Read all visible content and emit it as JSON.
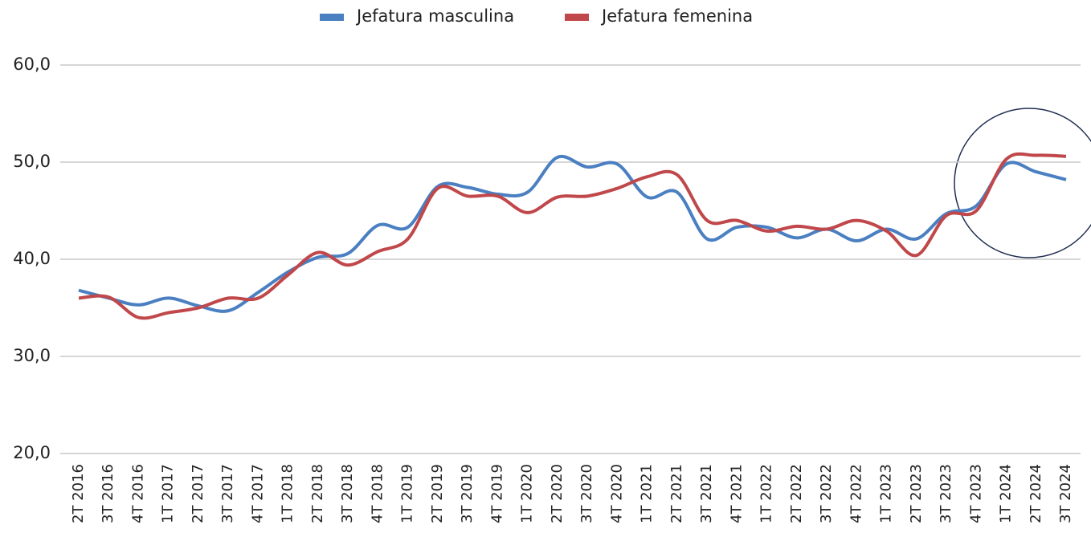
{
  "chart_data": {
    "type": "line",
    "categories": [
      "2T 2016",
      "3T 2016",
      "4T 2016",
      "1T 2017",
      "2T 2017",
      "3T 2017",
      "4T 2017",
      "1T 2018",
      "2T 2018",
      "3T 2018",
      "4T 2018",
      "1T 2019",
      "2T 2019",
      "3T 2019",
      "4T 2019",
      "1T 2020",
      "2T 2020",
      "3T 2020",
      "4T 2020",
      "1T 2021",
      "2T 2021",
      "3T 2021",
      "4T 2021",
      "1T 2022",
      "2T 2022",
      "3T 2022",
      "4T 2022",
      "1T 2023",
      "2T 2023",
      "3T 2023",
      "4T 2023",
      "1T 2024",
      "2T 2024",
      "3T 2024"
    ],
    "series": [
      {
        "name": "Jefatura masculina",
        "color": "#4a7fc1",
        "values": [
          36.8,
          36.0,
          35.3,
          36.0,
          35.2,
          34.7,
          36.6,
          38.7,
          40.2,
          40.6,
          43.5,
          43.3,
          47.5,
          47.4,
          46.7,
          46.9,
          50.5,
          49.5,
          49.8,
          46.4,
          46.9,
          42.1,
          43.3,
          43.3,
          42.2,
          43.1,
          41.9,
          43.1,
          42.1,
          44.7,
          45.5,
          49.8,
          49.0,
          48.2
        ]
      },
      {
        "name": "Jefatura femenina",
        "color": "#c0474a",
        "values": [
          36.0,
          36.1,
          34.0,
          34.5,
          35.0,
          36.0,
          36.0,
          38.4,
          40.7,
          39.4,
          40.8,
          42.1,
          47.3,
          46.5,
          46.5,
          44.8,
          46.4,
          46.5,
          47.3,
          48.5,
          48.7,
          44.0,
          44.0,
          42.9,
          43.4,
          43.1,
          44.0,
          42.9,
          40.4,
          44.5,
          45.0,
          50.3,
          50.7,
          50.6
        ]
      }
    ],
    "ylim": [
      20,
      60
    ],
    "yticks": [
      {
        "value": 20,
        "label": "20,0"
      },
      {
        "value": 30,
        "label": "30,0"
      },
      {
        "value": 40,
        "label": "40,0"
      },
      {
        "value": 50,
        "label": "50,0"
      },
      {
        "value": 60,
        "label": "60,0"
      }
    ],
    "grid": true,
    "legend": "top"
  }
}
